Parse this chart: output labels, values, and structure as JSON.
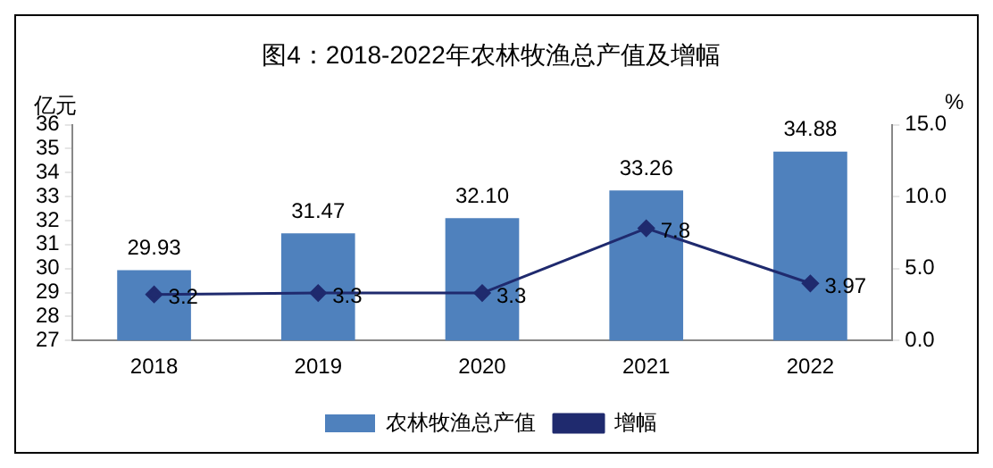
{
  "chart_data": {
    "type": "bar",
    "title": "图4：2018-2022年农林牧渔总产值及增幅",
    "ylabel": "亿元",
    "y2label": "%",
    "categories": [
      "2018",
      "2019",
      "2020",
      "2021",
      "2022"
    ],
    "series": [
      {
        "name": "农林牧渔总产值",
        "color": "#4f81bd",
        "values": [
          29.93,
          31.47,
          32.1,
          33.26,
          34.88
        ],
        "value_labels": [
          "29.93",
          "31.47",
          "32.10",
          "33.26",
          "34.88"
        ]
      },
      {
        "name": "增幅",
        "type": "line",
        "axis": "y2",
        "color": "#1f2a6e",
        "marker": "diamond",
        "values": [
          3.2,
          3.3,
          3.3,
          7.8,
          3.97
        ],
        "value_labels": [
          "3.2",
          "3.3",
          "3.3",
          "7.8",
          "3.97"
        ]
      }
    ],
    "ylim": [
      27,
      36
    ],
    "yticks": [
      27,
      28,
      29,
      30,
      31,
      32,
      33,
      34,
      35,
      36
    ],
    "y2lim": [
      0,
      15
    ],
    "y2ticks": [
      {
        "value": 0,
        "label": "0.0"
      },
      {
        "value": 5,
        "label": "5.0"
      },
      {
        "value": 10,
        "label": "10.0"
      },
      {
        "value": 15,
        "label": "15.0"
      }
    ],
    "grid": false,
    "legend": "bottom"
  }
}
